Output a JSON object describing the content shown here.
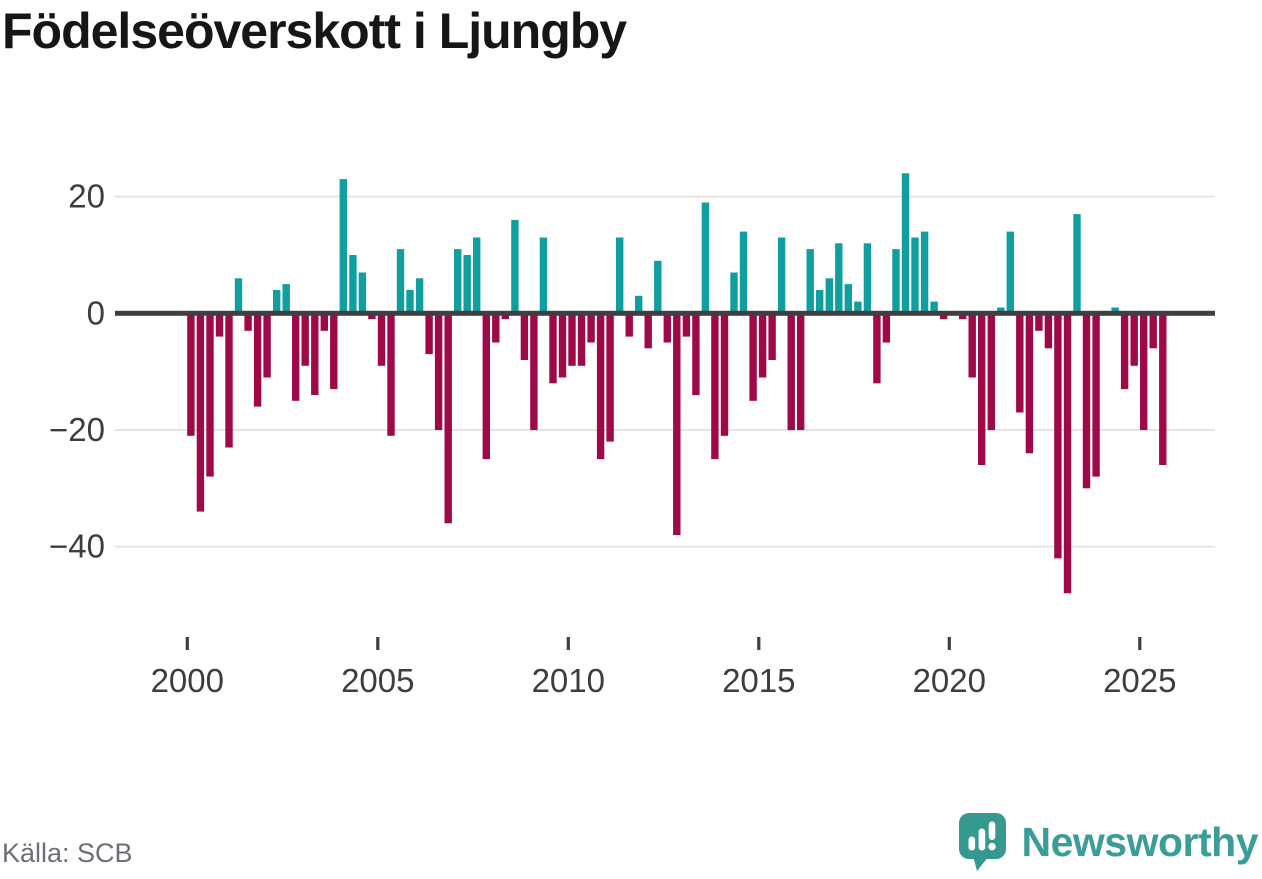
{
  "title": "Födelseöverskott i Ljungby",
  "source": "Källa: SCB",
  "branding": {
    "logo_text": "Newsworthy",
    "logo_icon": "newsworthy-speech-bubble-barchart-icon",
    "brand_teal": "#3a9d97",
    "icon_teal": "#36998f"
  },
  "colors": {
    "positive_bar": "#119e9e",
    "negative_bar": "#9e0a47",
    "zero_line": "#3f3f3f",
    "gridline": "#e4e4e4",
    "axis_text": "#3d3d3d",
    "title_text": "#161616",
    "source_text": "#6e6e77",
    "background": "#ffffff"
  },
  "chart_data": {
    "type": "bar",
    "title": "Födelseöverskott i Ljungby",
    "subtitle": "",
    "unit": "quarterly",
    "grid": true,
    "legend": "none",
    "ylim": [
      -50,
      26
    ],
    "y_axis": {
      "ticks": [
        20,
        0,
        -20,
        -40
      ],
      "tick_labels": [
        "20",
        "0",
        "−20",
        "−40"
      ]
    },
    "x_axis": {
      "ticks": [
        {
          "year": 2000,
          "label": "2000"
        },
        {
          "year": 2005,
          "label": "2005"
        },
        {
          "year": 2010,
          "label": "2010"
        },
        {
          "year": 2015,
          "label": "2015"
        },
        {
          "year": 2020,
          "label": "2020"
        },
        {
          "year": 2025,
          "label": "2025"
        }
      ]
    },
    "series_by_year": [
      {
        "year": 2000,
        "values": [
          -21,
          -34,
          -28,
          -4
        ]
      },
      {
        "year": 2001,
        "values": [
          -23,
          6,
          -3,
          -16
        ]
      },
      {
        "year": 2002,
        "values": [
          -11,
          4,
          5,
          -15
        ]
      },
      {
        "year": 2003,
        "values": [
          -9,
          -14,
          -3,
          -13
        ]
      },
      {
        "year": 2004,
        "values": [
          23,
          10,
          7,
          -1
        ]
      },
      {
        "year": 2005,
        "values": [
          -9,
          -21,
          11,
          4
        ]
      },
      {
        "year": 2006,
        "values": [
          6,
          -7,
          -20,
          -36
        ]
      },
      {
        "year": 2007,
        "values": [
          11,
          10,
          13,
          -25
        ]
      },
      {
        "year": 2008,
        "values": [
          -5,
          -1,
          16,
          -8
        ]
      },
      {
        "year": 2009,
        "values": [
          -20,
          13,
          -12,
          -11
        ]
      },
      {
        "year": 2010,
        "values": [
          -9,
          -9,
          -5,
          -25
        ]
      },
      {
        "year": 2011,
        "values": [
          -22,
          13,
          -4,
          3
        ]
      },
      {
        "year": 2012,
        "values": [
          -6,
          9,
          -5,
          -38
        ]
      },
      {
        "year": 2013,
        "values": [
          -4,
          -14,
          19,
          -25
        ]
      },
      {
        "year": 2014,
        "values": [
          -21,
          7,
          14,
          -15
        ]
      },
      {
        "year": 2015,
        "values": [
          -11,
          -8,
          13,
          -20
        ]
      },
      {
        "year": 2016,
        "values": [
          -20,
          11,
          4,
          6
        ]
      },
      {
        "year": 2017,
        "values": [
          12,
          5,
          2,
          12
        ]
      },
      {
        "year": 2018,
        "values": [
          -12,
          -5,
          11,
          24
        ]
      },
      {
        "year": 2019,
        "values": [
          13,
          14,
          2,
          -1
        ]
      },
      {
        "year": 2020,
        "values": [
          0,
          -1,
          -11,
          -26
        ]
      },
      {
        "year": 2021,
        "values": [
          -20,
          1,
          14,
          -17
        ]
      },
      {
        "year": 2022,
        "values": [
          -24,
          -3,
          -6,
          -42
        ]
      },
      {
        "year": 2023,
        "values": [
          -48,
          17,
          -30,
          -28
        ]
      },
      {
        "year": 2024,
        "values": [
          0,
          1,
          -13,
          -9
        ]
      },
      {
        "year": 2025,
        "values": [
          -20,
          -6,
          -26
        ]
      }
    ]
  }
}
